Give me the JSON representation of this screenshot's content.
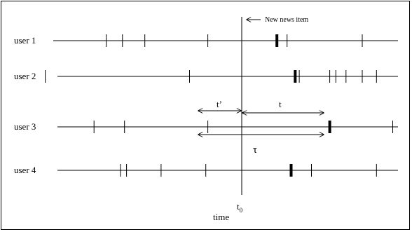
{
  "diagram": {
    "new_item_label": "New news item",
    "t_prime_label": "t’",
    "t_label": "t",
    "tau_label": "τ",
    "t0_label": "t",
    "t0_subscript": "0",
    "time_label": "time",
    "users": [
      {
        "label": "user 1",
        "events": [
          1.2,
          1.6,
          2.15,
          3.7
        ],
        "highlight": 5.4,
        "events_after": [
          5.65,
          7.5
        ]
      },
      {
        "label": "user 2",
        "events": [
          -0.3,
          3.25
        ],
        "highlight": 5.85,
        "events_after": [
          5.95,
          6.7,
          6.85,
          7.1,
          7.5,
          7.85
        ]
      },
      {
        "label": "user 3",
        "events": [
          0.9,
          1.65,
          3.7
        ],
        "highlight": 6.7,
        "events_after": [
          8.25
        ]
      },
      {
        "label": "user 4",
        "events": [
          1.55,
          1.7,
          2.55,
          3.65
        ],
        "highlight": 5.75,
        "events_after": [
          6.25,
          7.85
        ]
      }
    ]
  },
  "colors": {
    "line": "#000000",
    "background": "#ffffff",
    "border": "#000000"
  }
}
